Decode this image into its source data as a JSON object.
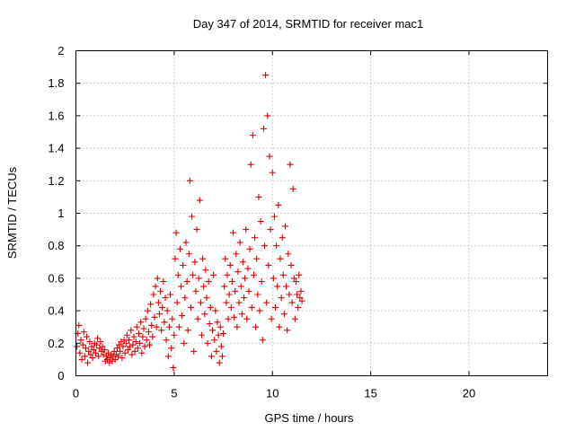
{
  "chart_data": {
    "type": "scatter",
    "title": "Day 347 of 2014, SRMTID for receiver mac1",
    "xlabel": "GPS time / hours",
    "ylabel": "SRMTID / TECUs",
    "xlim": [
      0,
      24
    ],
    "ylim": [
      0,
      2
    ],
    "xticks": [
      0,
      5,
      10,
      15,
      20
    ],
    "yticks": [
      0,
      0.2,
      0.4,
      0.6,
      0.8,
      1,
      1.2,
      1.4,
      1.6,
      1.8,
      2
    ],
    "ytick_labels": [
      "0",
      "0.2",
      "0.4",
      "0.6",
      "0.8",
      "1",
      "1.2",
      "1.4",
      "1.6",
      "1.8",
      "2"
    ],
    "grid": true,
    "marker": "plus",
    "color": "#dd0000",
    "series": [
      {
        "name": "mac1",
        "points": [
          [
            0.05,
            0.18
          ],
          [
            0.1,
            0.26
          ],
          [
            0.15,
            0.31
          ],
          [
            0.2,
            0.14
          ],
          [
            0.25,
            0.22
          ],
          [
            0.3,
            0.1
          ],
          [
            0.35,
            0.19
          ],
          [
            0.4,
            0.27
          ],
          [
            0.45,
            0.12
          ],
          [
            0.5,
            0.17
          ],
          [
            0.55,
            0.24
          ],
          [
            0.6,
            0.08
          ],
          [
            0.65,
            0.15
          ],
          [
            0.7,
            0.21
          ],
          [
            0.75,
            0.13
          ],
          [
            0.8,
            0.18
          ],
          [
            0.85,
            0.11
          ],
          [
            0.9,
            0.16
          ],
          [
            0.95,
            0.2
          ],
          [
            1.0,
            0.14
          ],
          [
            1.05,
            0.19
          ],
          [
            1.1,
            0.23
          ],
          [
            1.15,
            0.12
          ],
          [
            1.2,
            0.17
          ],
          [
            1.25,
            0.21
          ],
          [
            1.3,
            0.15
          ],
          [
            1.35,
            0.18
          ],
          [
            1.4,
            0.13
          ],
          [
            1.45,
            0.16
          ],
          [
            1.5,
            0.09
          ],
          [
            1.55,
            0.12
          ],
          [
            1.6,
            0.1
          ],
          [
            1.65,
            0.14
          ],
          [
            1.7,
            0.08
          ],
          [
            1.75,
            0.11
          ],
          [
            1.8,
            0.13
          ],
          [
            1.85,
            0.09
          ],
          [
            1.9,
            0.12
          ],
          [
            1.95,
            0.15
          ],
          [
            2.0,
            0.1
          ],
          [
            2.05,
            0.13
          ],
          [
            2.1,
            0.17
          ],
          [
            2.15,
            0.12
          ],
          [
            2.2,
            0.19
          ],
          [
            2.25,
            0.15
          ],
          [
            2.3,
            0.21
          ],
          [
            2.35,
            0.11
          ],
          [
            2.4,
            0.18
          ],
          [
            2.45,
            0.22
          ],
          [
            2.5,
            0.14
          ],
          [
            2.55,
            0.2
          ],
          [
            2.6,
            0.25
          ],
          [
            2.65,
            0.16
          ],
          [
            2.7,
            0.22
          ],
          [
            2.75,
            0.18
          ],
          [
            2.8,
            0.28
          ],
          [
            2.85,
            0.13
          ],
          [
            2.9,
            0.19
          ],
          [
            2.95,
            0.24
          ],
          [
            3.0,
            0.15
          ],
          [
            3.05,
            0.21
          ],
          [
            3.1,
            0.3
          ],
          [
            3.15,
            0.17
          ],
          [
            3.2,
            0.26
          ],
          [
            3.25,
            0.2
          ],
          [
            3.3,
            0.33
          ],
          [
            3.35,
            0.14
          ],
          [
            3.4,
            0.24
          ],
          [
            3.45,
            0.29
          ],
          [
            3.5,
            0.18
          ],
          [
            3.55,
            0.35
          ],
          [
            3.6,
            0.22
          ],
          [
            3.65,
            0.4
          ],
          [
            3.7,
            0.27
          ],
          [
            3.75,
            0.19
          ],
          [
            3.8,
            0.44
          ],
          [
            3.85,
            0.31
          ],
          [
            3.9,
            0.24
          ],
          [
            3.95,
            0.5
          ],
          [
            4.0,
            0.36
          ],
          [
            4.05,
            0.55
          ],
          [
            4.1,
            0.3
          ],
          [
            4.15,
            0.6
          ],
          [
            4.2,
            0.45
          ],
          [
            4.25,
            0.38
          ],
          [
            4.3,
            0.52
          ],
          [
            4.35,
            0.28
          ],
          [
            4.4,
            0.42
          ],
          [
            4.45,
            0.58
          ],
          [
            4.5,
            0.33
          ],
          [
            4.55,
            0.48
          ],
          [
            4.6,
            0.22
          ],
          [
            4.65,
            0.4
          ],
          [
            4.7,
            0.12
          ],
          [
            4.75,
            0.3
          ],
          [
            4.8,
            0.5
          ],
          [
            4.85,
            0.17
          ],
          [
            4.9,
            0.35
          ],
          [
            4.95,
            0.05
          ],
          [
            5.0,
            0.25
          ],
          [
            5.05,
            0.72
          ],
          [
            5.1,
            0.88
          ],
          [
            5.15,
            0.45
          ],
          [
            5.2,
            0.62
          ],
          [
            5.25,
            0.3
          ],
          [
            5.3,
            0.78
          ],
          [
            5.35,
            0.55
          ],
          [
            5.4,
            0.37
          ],
          [
            5.45,
            0.68
          ],
          [
            5.5,
            0.2
          ],
          [
            5.55,
            0.48
          ],
          [
            5.6,
            0.82
          ],
          [
            5.65,
            0.58
          ],
          [
            5.7,
            0.28
          ],
          [
            5.75,
            0.75
          ],
          [
            5.8,
            1.2
          ],
          [
            5.85,
            0.42
          ],
          [
            5.9,
            0.98
          ],
          [
            5.95,
            0.62
          ],
          [
            6.0,
            0.15
          ],
          [
            6.05,
            0.7
          ],
          [
            6.1,
            0.52
          ],
          [
            6.15,
            0.9
          ],
          [
            6.2,
            0.35
          ],
          [
            6.25,
            0.6
          ],
          [
            6.3,
            1.08
          ],
          [
            6.35,
            0.45
          ],
          [
            6.4,
            0.25
          ],
          [
            6.45,
            0.72
          ],
          [
            6.5,
            0.55
          ],
          [
            6.55,
            0.38
          ],
          [
            6.6,
            0.65
          ],
          [
            6.65,
            0.48
          ],
          [
            6.7,
            0.2
          ],
          [
            6.75,
            0.58
          ],
          [
            6.8,
            0.32
          ],
          [
            6.85,
            0.42
          ],
          [
            6.9,
            0.12
          ],
          [
            6.95,
            0.28
          ],
          [
            7.0,
            0.62
          ],
          [
            7.05,
            0.22
          ],
          [
            7.1,
            0.4
          ],
          [
            7.15,
            0.15
          ],
          [
            7.2,
            0.33
          ],
          [
            7.25,
            0.25
          ],
          [
            7.3,
            0.08
          ],
          [
            7.35,
            0.3
          ],
          [
            7.4,
            0.18
          ],
          [
            7.45,
            0.12
          ],
          [
            7.5,
            0.26
          ],
          [
            7.55,
            0.55
          ],
          [
            7.6,
            0.72
          ],
          [
            7.65,
            0.45
          ],
          [
            7.7,
            0.62
          ],
          [
            7.75,
            0.35
          ],
          [
            7.8,
            0.5
          ],
          [
            7.85,
            0.68
          ],
          [
            7.9,
            0.42
          ],
          [
            7.95,
            0.58
          ],
          [
            8.0,
            0.88
          ],
          [
            8.05,
            0.36
          ],
          [
            8.1,
            0.52
          ],
          [
            8.15,
            0.75
          ],
          [
            8.2,
            0.3
          ],
          [
            8.25,
            0.64
          ],
          [
            8.3,
            0.45
          ],
          [
            8.35,
            0.82
          ],
          [
            8.4,
            0.55
          ],
          [
            8.45,
            0.38
          ],
          [
            8.5,
            0.7
          ],
          [
            8.55,
            0.48
          ],
          [
            8.6,
            0.6
          ],
          [
            8.65,
            0.9
          ],
          [
            8.7,
            0.35
          ],
          [
            8.75,
            0.66
          ],
          [
            8.8,
            0.52
          ],
          [
            8.85,
            0.78
          ],
          [
            8.9,
            1.3
          ],
          [
            8.95,
            0.42
          ],
          [
            9.0,
            1.48
          ],
          [
            9.05,
            0.62
          ],
          [
            9.1,
            0.85
          ],
          [
            9.15,
            0.3
          ],
          [
            9.2,
            0.72
          ],
          [
            9.25,
            0.5
          ],
          [
            9.3,
            1.1
          ],
          [
            9.35,
            0.4
          ],
          [
            9.4,
            0.95
          ],
          [
            9.45,
            0.58
          ],
          [
            9.5,
            0.22
          ],
          [
            9.55,
            1.52
          ],
          [
            9.6,
            0.8
          ],
          [
            9.65,
            1.85
          ],
          [
            9.7,
            0.45
          ],
          [
            9.75,
            1.6
          ],
          [
            9.8,
            0.68
          ],
          [
            9.85,
            1.35
          ],
          [
            9.9,
            0.9
          ],
          [
            9.95,
            0.35
          ],
          [
            10.0,
            1.25
          ],
          [
            10.05,
            0.6
          ],
          [
            10.1,
            0.98
          ],
          [
            10.15,
            0.42
          ],
          [
            10.2,
            0.8
          ],
          [
            10.25,
            0.55
          ],
          [
            10.3,
            1.05
          ],
          [
            10.35,
            0.3
          ],
          [
            10.4,
            0.72
          ],
          [
            10.45,
            0.48
          ],
          [
            10.5,
            0.85
          ],
          [
            10.55,
            0.62
          ],
          [
            10.6,
            0.38
          ],
          [
            10.65,
            0.92
          ],
          [
            10.7,
            0.55
          ],
          [
            10.75,
            0.28
          ],
          [
            10.8,
            0.75
          ],
          [
            10.85,
            0.5
          ],
          [
            10.9,
            1.3
          ],
          [
            10.95,
            0.68
          ],
          [
            11.0,
            0.45
          ],
          [
            11.05,
            1.15
          ],
          [
            11.1,
            0.6
          ],
          [
            11.15,
            0.35
          ],
          [
            11.2,
            0.58
          ],
          [
            11.25,
            0.5
          ],
          [
            11.3,
            0.42
          ],
          [
            11.35,
            0.62
          ],
          [
            11.4,
            0.48
          ],
          [
            11.45,
            0.52
          ],
          [
            11.5,
            0.46
          ]
        ]
      }
    ]
  }
}
